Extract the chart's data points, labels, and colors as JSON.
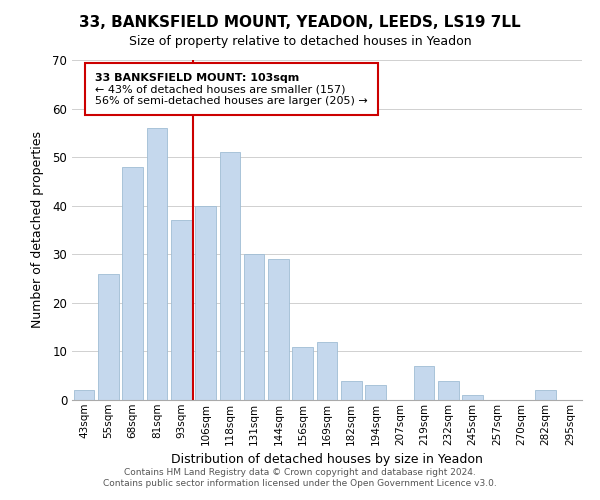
{
  "title": "33, BANKSFIELD MOUNT, YEADON, LEEDS, LS19 7LL",
  "subtitle": "Size of property relative to detached houses in Yeadon",
  "xlabel": "Distribution of detached houses by size in Yeadon",
  "ylabel": "Number of detached properties",
  "bar_labels": [
    "43sqm",
    "55sqm",
    "68sqm",
    "81sqm",
    "93sqm",
    "106sqm",
    "118sqm",
    "131sqm",
    "144sqm",
    "156sqm",
    "169sqm",
    "182sqm",
    "194sqm",
    "207sqm",
    "219sqm",
    "232sqm",
    "245sqm",
    "257sqm",
    "270sqm",
    "282sqm",
    "295sqm"
  ],
  "bar_values": [
    2,
    26,
    48,
    56,
    37,
    40,
    51,
    30,
    29,
    11,
    12,
    4,
    3,
    0,
    7,
    4,
    1,
    0,
    0,
    2,
    0
  ],
  "bar_color": "#c5d8ed",
  "bar_edge_color": "#a0bdd4",
  "ylim": [
    0,
    70
  ],
  "yticks": [
    0,
    10,
    20,
    30,
    40,
    50,
    60,
    70
  ],
  "vline_x_index": 5,
  "vline_color": "#cc0000",
  "ann_bold": "33 BANKSFIELD MOUNT: 103sqm",
  "ann_line1": "← 43% of detached houses are smaller (157)",
  "ann_line2": "56% of semi-detached houses are larger (205) →",
  "footer1": "Contains HM Land Registry data © Crown copyright and database right 2024.",
  "footer2": "Contains public sector information licensed under the Open Government Licence v3.0."
}
